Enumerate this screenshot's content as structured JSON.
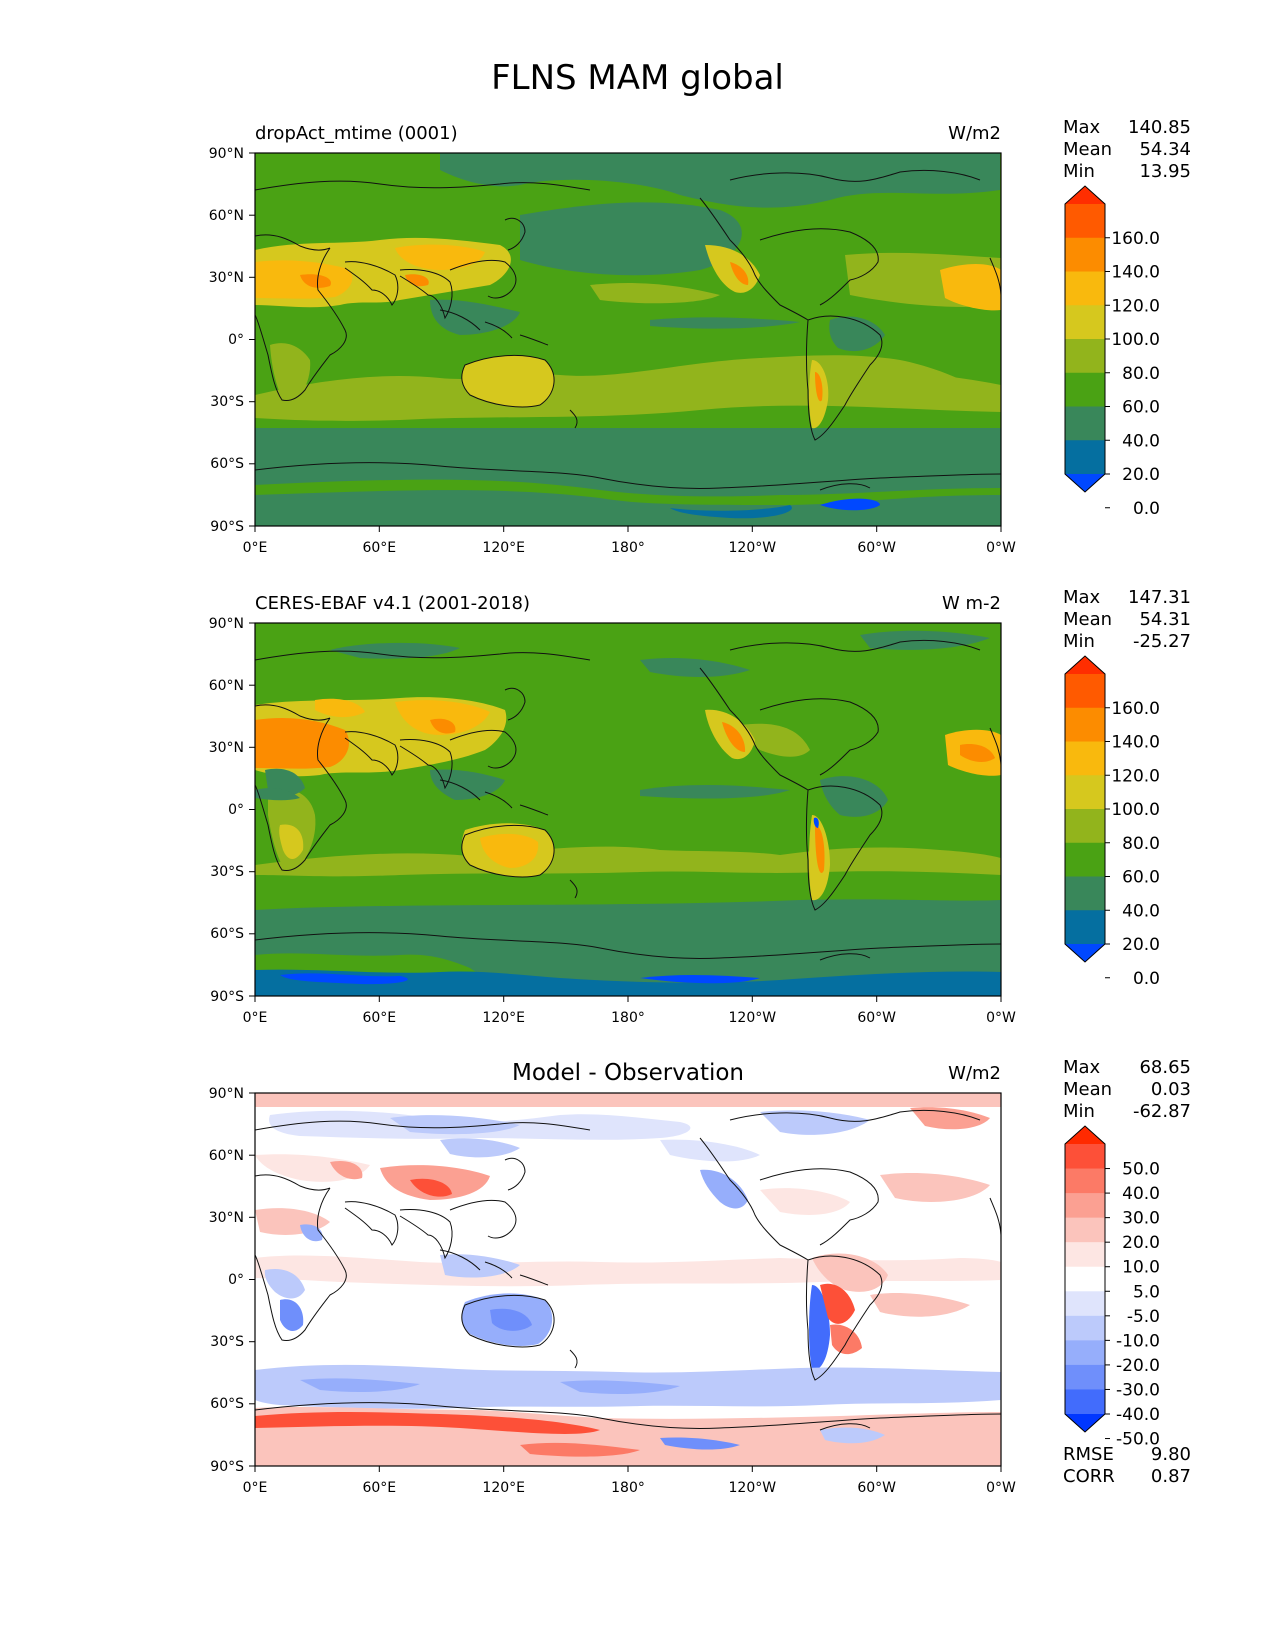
{
  "figure": {
    "title": "FLNS MAM global"
  },
  "axes": {
    "lat_ticks": [
      "90°N",
      "60°N",
      "30°N",
      "0°",
      "30°S",
      "60°S",
      "90°S"
    ],
    "lon_ticks": [
      "0°E",
      "60°E",
      "120°E",
      "180°",
      "120°W",
      "60°W",
      "0°W"
    ]
  },
  "panels": [
    {
      "title_left": "dropAct_mtime (0001)",
      "title_center": "",
      "units": "W/m2",
      "stats": [
        {
          "label": "Max",
          "value": "140.85"
        },
        {
          "label": "Mean",
          "value": "54.34"
        },
        {
          "label": "Min",
          "value": "13.95"
        }
      ],
      "colorbar": {
        "labels": [
          "160.0",
          "140.0",
          "120.0",
          "100.0",
          "80.0",
          "60.0",
          "40.0",
          "20.0",
          "0.0"
        ],
        "colors": [
          "#ff2e00",
          "#ff5a00",
          "#fc8c00",
          "#f9b90d",
          "#d6c81e",
          "#92b41c",
          "#4aa214",
          "#39875a",
          "#056fa0",
          "#0048ff"
        ]
      },
      "extra": []
    },
    {
      "title_left": "CERES-EBAF v4.1 (2001-2018)",
      "title_center": "",
      "units": "W m-2",
      "stats": [
        {
          "label": "Max",
          "value": "147.31"
        },
        {
          "label": "Mean",
          "value": "54.31"
        },
        {
          "label": "Min",
          "value": "-25.27"
        }
      ],
      "colorbar": {
        "labels": [
          "160.0",
          "140.0",
          "120.0",
          "100.0",
          "80.0",
          "60.0",
          "40.0",
          "20.0",
          "0.0"
        ],
        "colors": [
          "#ff2e00",
          "#ff5a00",
          "#fc8c00",
          "#f9b90d",
          "#d6c81e",
          "#92b41c",
          "#4aa214",
          "#39875a",
          "#056fa0",
          "#0048ff"
        ]
      },
      "extra": []
    },
    {
      "title_left": "",
      "title_center": "Model - Observation",
      "units": "W/m2",
      "stats": [
        {
          "label": "Max",
          "value": "68.65"
        },
        {
          "label": "Mean",
          "value": "0.03"
        },
        {
          "label": "Min",
          "value": "-62.87"
        }
      ],
      "colorbar": {
        "labels": [
          "50.0",
          "40.0",
          "30.0",
          "20.0",
          "10.0",
          "5.0",
          "-5.0",
          "-10.0",
          "-20.0",
          "-30.0",
          "-40.0",
          "-50.0"
        ],
        "colors": [
          "#ff2a00",
          "#fd5038",
          "#fc7a66",
          "#fba092",
          "#fbc4bc",
          "#fde6e3",
          "#ffffff",
          "#dfe4fc",
          "#bccafb",
          "#96aefb",
          "#6f8ffb",
          "#426cfc",
          "#0037ff"
        ]
      },
      "extra": [
        {
          "label": "RMSE",
          "value": "9.80"
        },
        {
          "label": "CORR",
          "value": "0.87"
        }
      ]
    }
  ]
}
